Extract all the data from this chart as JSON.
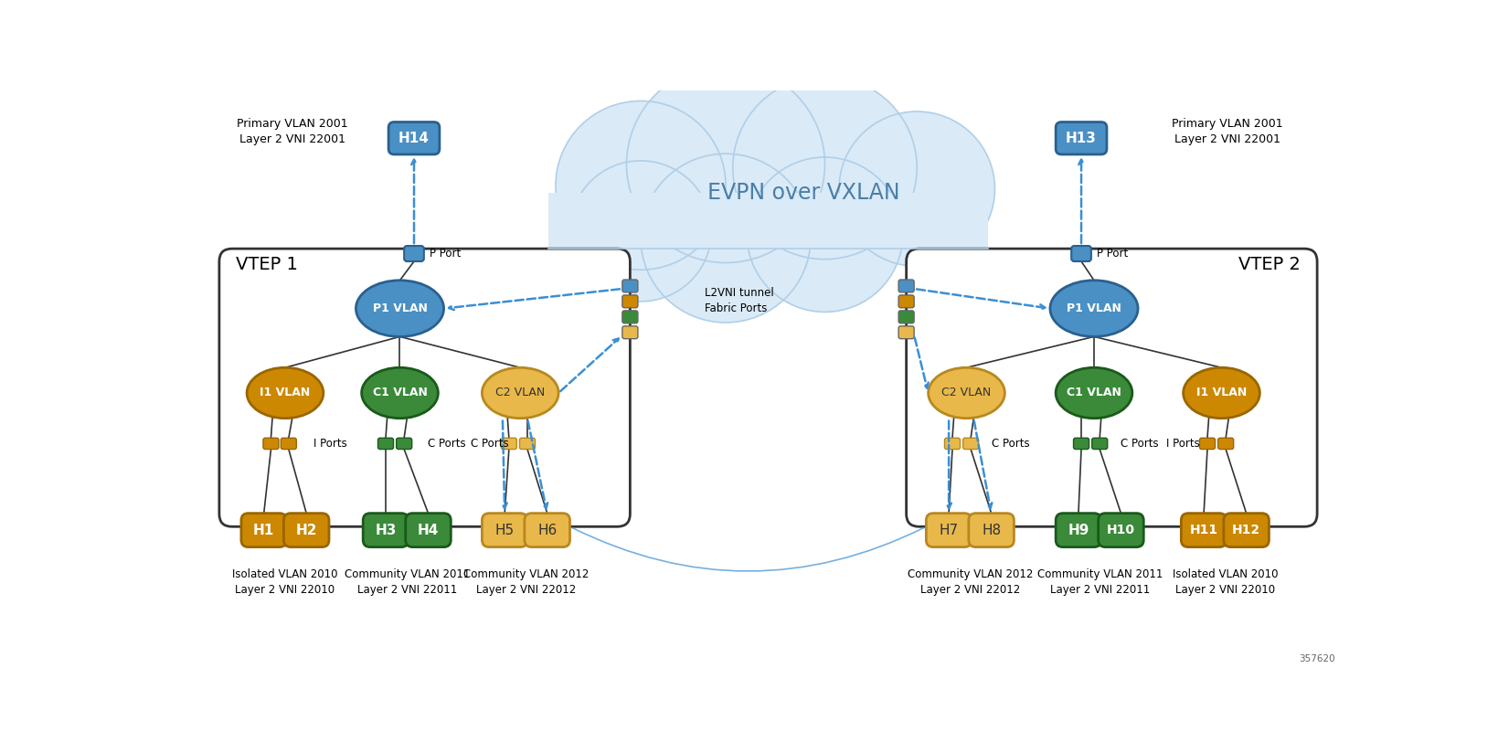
{
  "title": "EVPN over VXLAN",
  "vtep1_label": "VTEP 1",
  "vtep2_label": "VTEP 2",
  "cloud_color": "#daeaf7",
  "cloud_edge_color": "#b0cfe8",
  "box_bg": "#ffffff",
  "box_edge": "#333333",
  "blue_node_color": "#4a90c4",
  "blue_node_edge": "#2a6090",
  "orange_node_color": "#cc8800",
  "orange_node_edge": "#996600",
  "green_node_color": "#3a8a3a",
  "green_node_edge": "#1a5a1a",
  "yellow_node_color": "#e8b84b",
  "yellow_node_edge": "#b88820",
  "host_blue_bg": "#4a90c4",
  "host_blue_edge": "#2a6090",
  "host_orange_bg": "#cc8800",
  "host_orange_edge": "#996600",
  "host_green_bg": "#3a8a3a",
  "host_green_edge": "#1a5a1a",
  "host_yellow_bg": "#e8b84b",
  "host_yellow_edge": "#b88820",
  "dashed_arrow_color": "#3a8fd4",
  "solid_line_color": "#333333",
  "port_blue": "#4a90c4",
  "port_orange": "#cc8800",
  "port_green": "#3a8a3a",
  "port_yellow": "#e8b84b",
  "primary_vlan_label1": "Primary VLAN 2001\nLayer 2 VNI 22001",
  "primary_vlan_label2": "Primary VLAN 2001\nLayer 2 VNI 22001",
  "bottom_labels_left": [
    "Isolated VLAN 2010\nLayer 2 VNI 22010",
    "Community VLAN 2011\nLayer 2 VNI 22011",
    "Community VLAN 2012\nLayer 2 VNI 22012"
  ],
  "bottom_labels_right": [
    "Community VLAN 2012\nLayer 2 VNI 22012",
    "Community VLAN 2011\nLayer 2 VNI 22011",
    "Isolated VLAN 2010\nLayer 2 VNI 22010"
  ],
  "l2vni_label": "L2VNI tunnel",
  "fabric_label": "Fabric Ports",
  "copyright": "357620"
}
